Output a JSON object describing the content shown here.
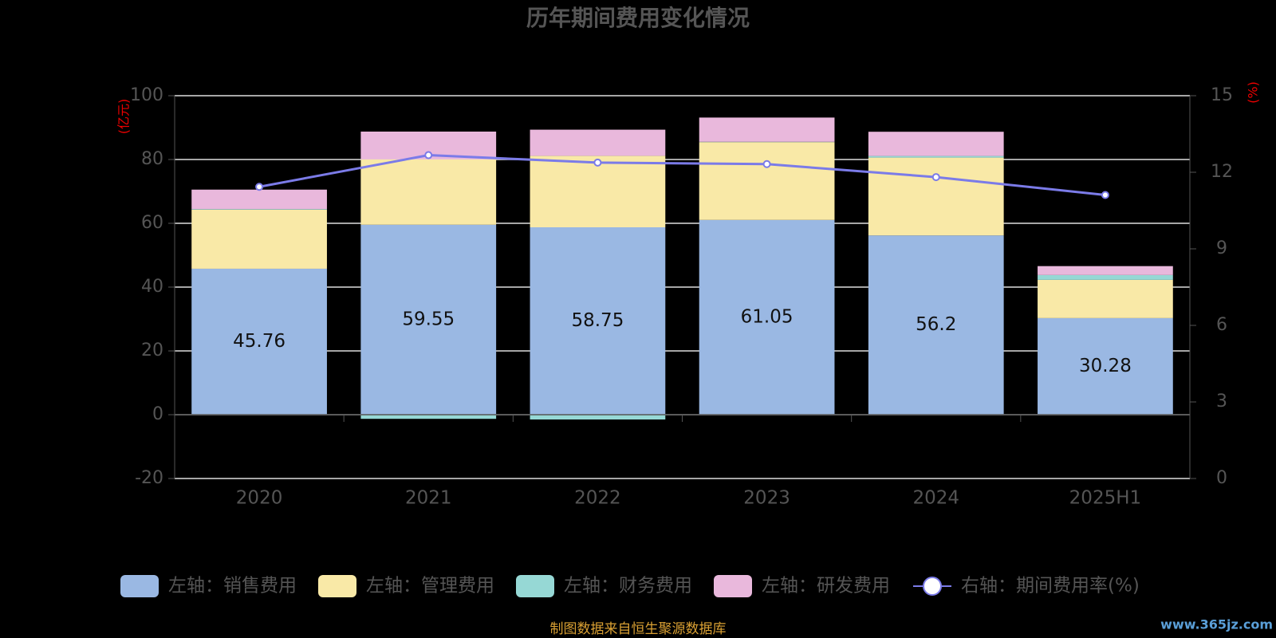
{
  "chart_data": {
    "type": "bar",
    "stacked": true,
    "title": "历年期间费用变化情况",
    "y_label": "(亿元)",
    "y2_label": "(%)",
    "categories": [
      "2020",
      "2021",
      "2022",
      "2023",
      "2024",
      "2025H1"
    ],
    "series": [
      {
        "name": "左轴：销售费用",
        "color": "#9ab8e3",
        "values": [
          45.76,
          59.55,
          58.75,
          61.05,
          56.2,
          30.28
        ],
        "show_labels": true
      },
      {
        "name": "左轴：管理费用",
        "color": "#f9e9a7",
        "values": [
          18.5,
          20.5,
          22.4,
          24.4,
          24.4,
          12.0
        ]
      },
      {
        "name": "左轴：财务费用",
        "color": "#96d8d5",
        "values": [
          0.2,
          -1.3,
          -1.5,
          0.1,
          0.5,
          1.5
        ]
      },
      {
        "name": "左轴：研发费用",
        "color": "#e9b8dc",
        "values": [
          6.1,
          8.7,
          8.2,
          7.6,
          7.6,
          2.8
        ]
      },
      {
        "name": "右轴：期间费用率(%)",
        "color": "#7b7be8",
        "type": "line",
        "axis": "y2",
        "values": [
          11.43,
          12.67,
          12.38,
          12.32,
          11.81,
          11.11
        ]
      }
    ],
    "ylim": [
      -20,
      100
    ],
    "yticks": [
      -20,
      0,
      20,
      40,
      60,
      80,
      100
    ],
    "y2lim": [
      0,
      15
    ],
    "y2ticks": [
      0,
      3,
      6,
      9,
      12,
      15
    ],
    "grid": true,
    "source": "制图数据来自恒生聚源数据库",
    "watermark": "www.365jz.com"
  }
}
